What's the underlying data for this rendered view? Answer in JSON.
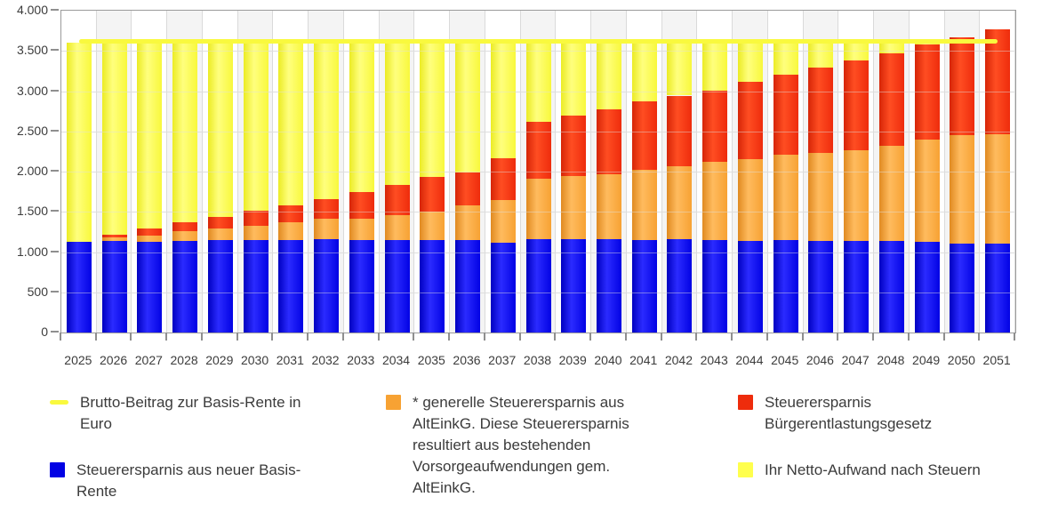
{
  "chart_data": {
    "type": "bar",
    "stacked": true,
    "title": "",
    "xlabel": "",
    "ylabel": "",
    "ylim": [
      0,
      4000
    ],
    "grid": true,
    "legend_position": "bottom",
    "y_tick_labels": [
      "4.000",
      "3.500",
      "3.000",
      "2.500",
      "2.000",
      "1.500",
      "1.000",
      "500",
      "0"
    ],
    "categories": [
      "2025",
      "2026",
      "2027",
      "2028",
      "2029",
      "2030",
      "2031",
      "2032",
      "2033",
      "2034",
      "2035",
      "2036",
      "2037",
      "2038",
      "2039",
      "2040",
      "2041",
      "2042",
      "2043",
      "2044",
      "2045",
      "2046",
      "2047",
      "2048",
      "2049",
      "2050",
      "2051"
    ],
    "series": [
      {
        "name": "Steuerersparnis aus neuer Basis-Rente",
        "color": "#0202e4",
        "color_dark": "#0000c0",
        "color_light": "#2b2bff",
        "values": [
          1130,
          1140,
          1130,
          1135,
          1145,
          1145,
          1145,
          1155,
          1150,
          1145,
          1150,
          1150,
          1115,
          1165,
          1160,
          1160,
          1145,
          1160,
          1150,
          1140,
          1145,
          1135,
          1140,
          1140,
          1130,
          1110,
          1105
        ]
      },
      {
        "name": "* generelle Steuerersparnis aus AltEinkG. Diese Steuerersparnis resultiert aus bestehenden Vorsorgeaufwendungen gem. AltEinkG.",
        "color": "#f7a233",
        "color_dark": "#e08a21",
        "color_light": "#ffbb5e",
        "values": [
          0,
          45,
          80,
          120,
          145,
          185,
          225,
          255,
          270,
          310,
          355,
          430,
          535,
          750,
          785,
          810,
          875,
          905,
          970,
          1020,
          1070,
          1100,
          1130,
          1185,
          1270,
          1345,
          1360
        ]
      },
      {
        "name": "Steuerersparnis Bürgerentlastungsgesetz",
        "color": "#ee2c0c",
        "color_dark": "#d62507",
        "color_light": "#ff4d22",
        "values": [
          0,
          35,
          80,
          110,
          145,
          180,
          215,
          250,
          330,
          380,
          425,
          410,
          520,
          700,
          755,
          800,
          855,
          880,
          890,
          960,
          990,
          1055,
          1110,
          1145,
          1175,
          1210,
          1305
        ]
      },
      {
        "name": "Ihr Netto-Aufwand nach Steuern",
        "color": "#f8f83c",
        "color_dark": "#ebeb24",
        "color_light": "#ffff7e",
        "values": [
          2470,
          2380,
          2310,
          2235,
          2165,
          2090,
          2015,
          1940,
          1850,
          1765,
          1670,
          1610,
          1430,
          985,
          900,
          830,
          725,
          655,
          590,
          480,
          395,
          310,
          220,
          130,
          25,
          0,
          0
        ]
      }
    ],
    "line_series": {
      "name": "Brutto-Beitrag zur Basis-Rente in Euro",
      "color": "#f9f93e",
      "value": 3600
    }
  },
  "legend": {
    "columns": [
      {
        "items": [
          {
            "swatch_shape": "line",
            "color": "#f9f93e",
            "label": "Brutto-Beitrag zur Basis-Rente in Euro"
          },
          {
            "swatch_shape": "square",
            "color": "#0202e4",
            "label": "Steuerersparnis aus neuer Basis-Rente"
          }
        ]
      },
      {
        "items": [
          {
            "swatch_shape": "square",
            "color": "#f7a233",
            "label": "* generelle Steuerersparnis aus AltEinkG. Diese Steuerersparnis resultiert aus bestehenden Vorsorgeaufwendungen gem. AltEinkG."
          }
        ]
      },
      {
        "items": [
          {
            "swatch_shape": "square",
            "color": "#ee2c0c",
            "label": "Steuerersparnis Bürgerentlastungsgesetz"
          },
          {
            "swatch_shape": "square",
            "color": "#ffff4d",
            "label": "Ihr Netto-Aufwand nach Steuern"
          }
        ]
      }
    ]
  },
  "colors": {
    "band_alt": "#f4f4f4",
    "gridline": "#dcdcdc",
    "axis": "#9b9b9b",
    "label_text": "#3c3c3c"
  }
}
